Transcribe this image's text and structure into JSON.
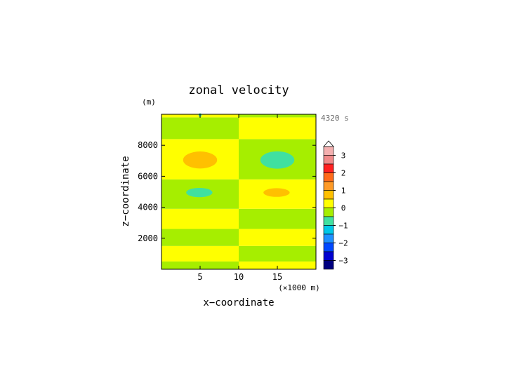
{
  "chart_data": {
    "type": "heatmap",
    "title": "zonal velocity",
    "xlabel": "x−coordinate",
    "ylabel": "z−coordinate",
    "x_unit": "(×1000 m)",
    "y_unit": "(m)",
    "time_label": "4320 s",
    "xlim": [
      0,
      20
    ],
    "ylim": [
      0,
      10000
    ],
    "x_ticks": [
      5,
      10,
      15
    ],
    "y_ticks": [
      2000,
      4000,
      6000,
      8000
    ],
    "colorbar": {
      "ticks": [
        "3",
        "2",
        "1",
        "0",
        "−1",
        "−2",
        "−3"
      ],
      "levels": [
        {
          "from": 3.0,
          "to": 3.5,
          "color": "#f4b0b0"
        },
        {
          "from": 2.5,
          "to": 3.0,
          "color": "#f08a8a"
        },
        {
          "from": 2.0,
          "to": 2.5,
          "color": "#ff2020"
        },
        {
          "from": 1.5,
          "to": 2.0,
          "color": "#ff6a1a"
        },
        {
          "from": 1.0,
          "to": 1.5,
          "color": "#ff9a26"
        },
        {
          "from": 0.5,
          "to": 1.0,
          "color": "#ffc000"
        },
        {
          "from": 0.0,
          "to": 0.5,
          "color": "#ffff00"
        },
        {
          "from": -0.5,
          "to": 0.0,
          "color": "#a6ee00"
        },
        {
          "from": -1.0,
          "to": -0.5,
          "color": "#40e0a0"
        },
        {
          "from": -1.5,
          "to": -1.0,
          "color": "#00c8e8"
        },
        {
          "from": -2.0,
          "to": -1.5,
          "color": "#1e90ff"
        },
        {
          "from": -2.5,
          "to": -2.0,
          "color": "#0048ff"
        },
        {
          "from": -3.0,
          "to": -2.5,
          "color": "#0000d0"
        },
        {
          "from": -3.5,
          "to": -3.0,
          "color": "#000080"
        }
      ]
    },
    "bands": [
      {
        "x": [
          0,
          10
        ],
        "z": [
          0,
          500
        ],
        "value": -0.2
      },
      {
        "x": [
          0,
          10
        ],
        "z": [
          500,
          1500
        ],
        "value": 0.2
      },
      {
        "x": [
          0,
          10
        ],
        "z": [
          1500,
          2600
        ],
        "value": -0.2
      },
      {
        "x": [
          0,
          10
        ],
        "z": [
          2600,
          3900
        ],
        "value": 0.2
      },
      {
        "x": [
          0,
          10
        ],
        "z": [
          3900,
          5800
        ],
        "value": -0.2
      },
      {
        "x": [
          0,
          10
        ],
        "z": [
          5800,
          8400
        ],
        "value": 0.2
      },
      {
        "x": [
          0,
          10
        ],
        "z": [
          8400,
          9800
        ],
        "value": -0.2
      },
      {
        "x": [
          0,
          10
        ],
        "z": [
          9800,
          10000
        ],
        "value": 0.2
      },
      {
        "x": [
          10,
          20
        ],
        "z": [
          0,
          500
        ],
        "value": 0.2
      },
      {
        "x": [
          10,
          20
        ],
        "z": [
          500,
          1500
        ],
        "value": -0.2
      },
      {
        "x": [
          10,
          20
        ],
        "z": [
          1500,
          2600
        ],
        "value": 0.2
      },
      {
        "x": [
          10,
          20
        ],
        "z": [
          2600,
          3900
        ],
        "value": -0.2
      },
      {
        "x": [
          10,
          20
        ],
        "z": [
          3900,
          5800
        ],
        "value": 0.2
      },
      {
        "x": [
          10,
          20
        ],
        "z": [
          5800,
          8400
        ],
        "value": -0.2
      },
      {
        "x": [
          10,
          20
        ],
        "z": [
          8400,
          9800
        ],
        "value": 0.2
      },
      {
        "x": [
          10,
          20
        ],
        "z": [
          9800,
          10000
        ],
        "value": -0.2
      }
    ],
    "blobs": [
      {
        "cx": 5.0,
        "cz": 7050,
        "rx": 2.2,
        "rz": 550,
        "value": 0.7
      },
      {
        "cx": 4.9,
        "cz": 4950,
        "rx": 1.7,
        "rz": 300,
        "value": -0.7
      },
      {
        "cx": 15.0,
        "cz": 7050,
        "rx": 2.2,
        "rz": 560,
        "value": -0.7
      },
      {
        "cx": 14.9,
        "cz": 4950,
        "rx": 1.7,
        "rz": 280,
        "value": 0.7
      },
      {
        "cx": 5.0,
        "cz": 9950,
        "rx": 0.2,
        "rz": 120,
        "value": -0.7
      }
    ]
  }
}
